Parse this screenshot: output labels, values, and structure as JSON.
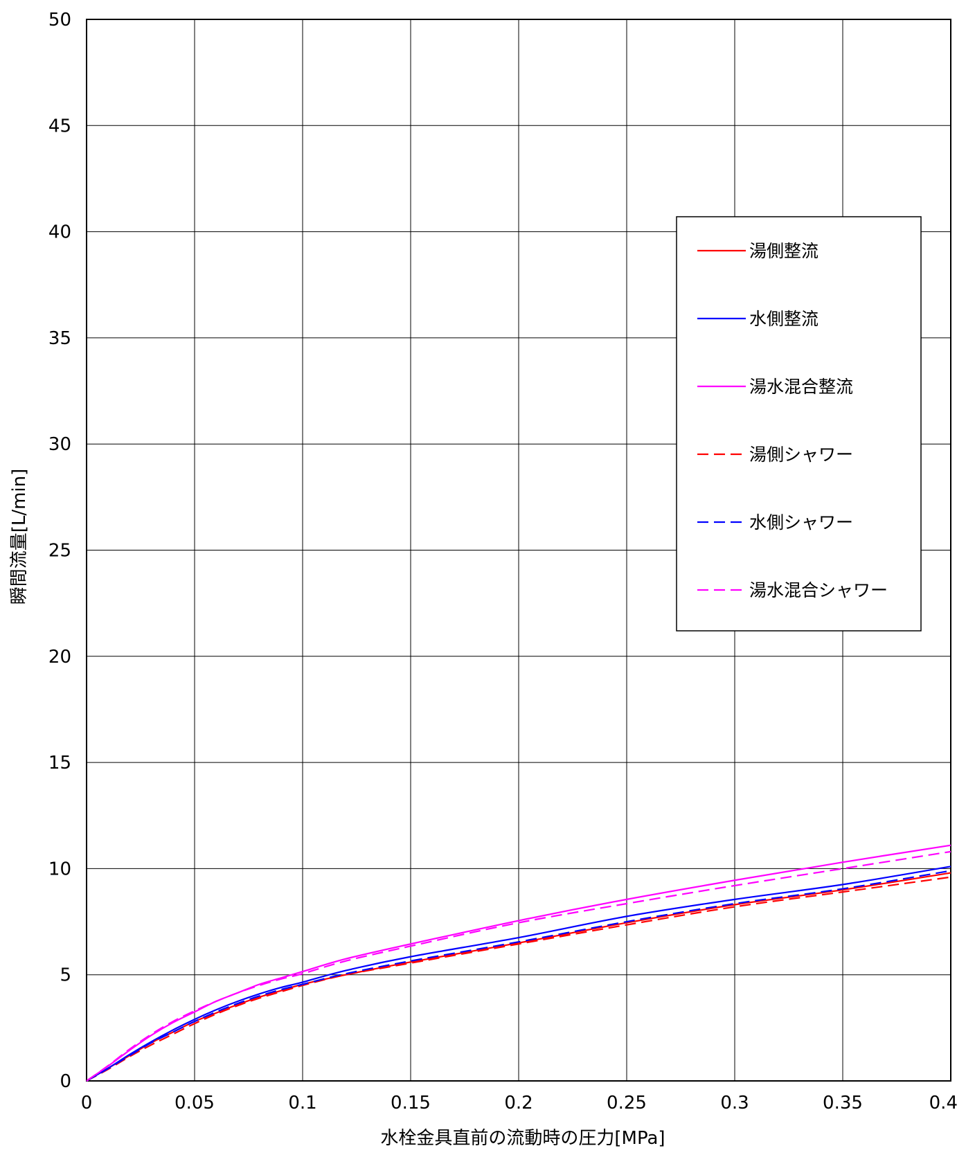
{
  "chart_data": {
    "type": "line",
    "title": "",
    "xlabel": "水栓金具直前の流動時の圧力[MPa]",
    "ylabel": "瞬間流量[L/min]",
    "xlim": [
      0,
      0.4
    ],
    "ylim": [
      0,
      50
    ],
    "x_ticks": [
      0,
      0.05,
      0.1,
      0.15,
      0.2,
      0.25,
      0.3,
      0.35,
      0.4
    ],
    "x_tick_labels": [
      "0",
      "0.05",
      "0.1",
      "0.15",
      "0.2",
      "0.25",
      "0.3",
      "0.35",
      "0.4"
    ],
    "y_ticks": [
      0,
      5,
      10,
      15,
      20,
      25,
      30,
      35,
      40,
      45,
      50
    ],
    "y_tick_labels": [
      "0",
      "5",
      "10",
      "15",
      "20",
      "25",
      "30",
      "35",
      "40",
      "45",
      "50"
    ],
    "grid": true,
    "legend_position": "right",
    "x": [
      0,
      0.01,
      0.02,
      0.03,
      0.04,
      0.05,
      0.06,
      0.07,
      0.08,
      0.09,
      0.1,
      0.12,
      0.15,
      0.2,
      0.25,
      0.3,
      0.35,
      0.4
    ],
    "series": [
      {
        "name": "湯側整流",
        "color": "#ff0000",
        "dash": false,
        "values": [
          0,
          0.6,
          1.2,
          1.8,
          2.3,
          2.8,
          3.2,
          3.6,
          3.95,
          4.25,
          4.55,
          5.0,
          5.6,
          6.5,
          7.45,
          8.3,
          9.0,
          9.8
        ]
      },
      {
        "name": "水側整流",
        "color": "#0000ff",
        "dash": false,
        "values": [
          0,
          0.6,
          1.25,
          1.85,
          2.4,
          2.9,
          3.35,
          3.75,
          4.1,
          4.4,
          4.65,
          5.2,
          5.85,
          6.75,
          7.75,
          8.55,
          9.25,
          10.1
        ]
      },
      {
        "name": "湯水混合整流",
        "color": "#ff00ff",
        "dash": false,
        "values": [
          0,
          0.7,
          1.45,
          2.15,
          2.75,
          3.25,
          3.75,
          4.15,
          4.55,
          4.85,
          5.15,
          5.75,
          6.45,
          7.55,
          8.55,
          9.45,
          10.3,
          11.1
        ]
      },
      {
        "name": "湯側シャワー",
        "color": "#ff0000",
        "dash": true,
        "values": [
          0,
          0.55,
          1.15,
          1.7,
          2.2,
          2.7,
          3.15,
          3.55,
          3.9,
          4.2,
          4.5,
          5.0,
          5.55,
          6.45,
          7.35,
          8.2,
          8.9,
          9.6
        ]
      },
      {
        "name": "水側シャワー",
        "color": "#0000ff",
        "dash": true,
        "values": [
          0,
          0.58,
          1.2,
          1.8,
          2.3,
          2.8,
          3.25,
          3.65,
          4.0,
          4.3,
          4.55,
          5.05,
          5.65,
          6.55,
          7.5,
          8.35,
          9.05,
          9.9
        ]
      },
      {
        "name": "湯水混合シャワー",
        "color": "#ff00ff",
        "dash": true,
        "values": [
          0,
          0.72,
          1.5,
          2.2,
          2.8,
          3.3,
          3.75,
          4.15,
          4.5,
          4.8,
          5.05,
          5.65,
          6.35,
          7.45,
          8.35,
          9.2,
          10.0,
          10.8
        ]
      }
    ]
  }
}
